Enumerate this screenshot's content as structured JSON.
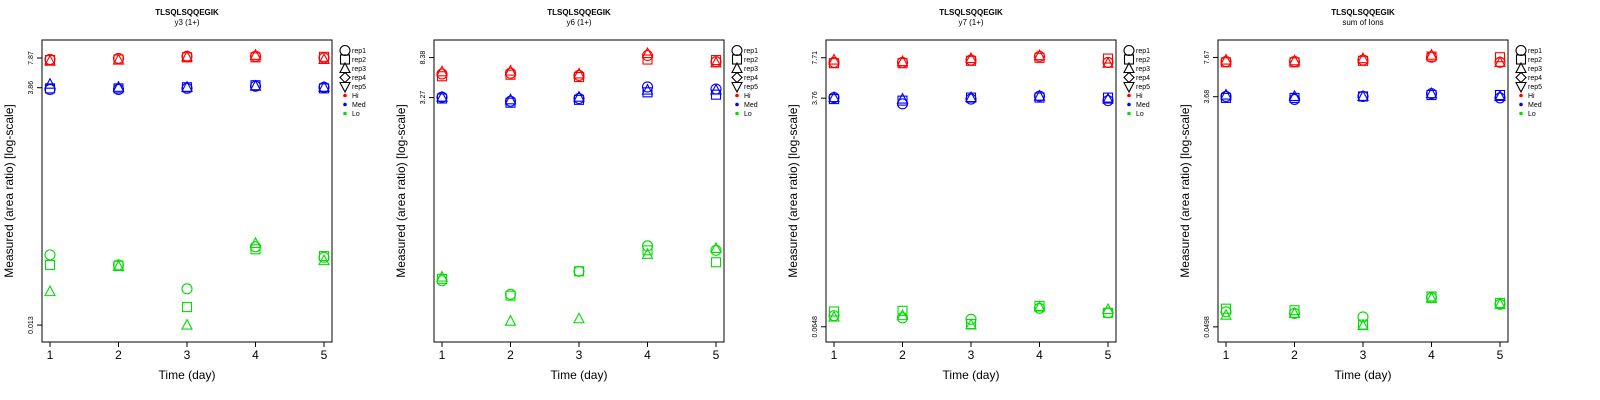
{
  "legend": {
    "items": [
      {
        "label": "rep1",
        "shape": "circle"
      },
      {
        "label": "rep2",
        "shape": "square"
      },
      {
        "label": "rep3",
        "shape": "triangle-up"
      },
      {
        "label": "rep4",
        "shape": "diamond"
      },
      {
        "label": "rep5",
        "shape": "triangle-down"
      },
      {
        "label": "Hi",
        "shape": "dot",
        "color": "#ff0000"
      },
      {
        "label": "Med",
        "shape": "dot",
        "color": "#0000ff"
      },
      {
        "label": "Lo",
        "shape": "dot",
        "color": "#00dd00"
      }
    ]
  },
  "colors": {
    "Hi": "#ff0000",
    "Med": "#0000ff",
    "Lo": "#00dd00"
  },
  "chart_data": [
    {
      "type": "scatter",
      "title": "TLSQLSQQEGIK",
      "subtitle": "y3 (1+)",
      "xlabel": "Time (day)",
      "ylabel": "Measured (area ratio) [log-scale]",
      "yscale": "log",
      "x_ticks": [
        1,
        2,
        3,
        4,
        5
      ],
      "y_ticks": [
        {
          "value": 0.013,
          "label": "0.013"
        },
        {
          "value": 3.86,
          "label": "3.86"
        },
        {
          "value": 7.87,
          "label": "7.87"
        }
      ],
      "ylim": [
        0.01,
        10.5
      ],
      "series": [
        {
          "group": "Hi",
          "rep": "rep1",
          "x": [
            1,
            2,
            3,
            4,
            5
          ],
          "y": [
            7.6,
            7.8,
            8.2,
            8.2,
            7.9
          ]
        },
        {
          "group": "Hi",
          "rep": "rep2",
          "x": [
            1,
            2,
            3,
            4,
            5
          ],
          "y": [
            7.5,
            7.6,
            8.0,
            8.0,
            8.1
          ]
        },
        {
          "group": "Hi",
          "rep": "rep3",
          "x": [
            1,
            2,
            3,
            4,
            5
          ],
          "y": [
            7.3,
            7.5,
            8.1,
            8.4,
            7.6
          ]
        },
        {
          "group": "Med",
          "rep": "rep1",
          "x": [
            1,
            2,
            3,
            4,
            5
          ],
          "y": [
            3.7,
            3.7,
            3.8,
            4.0,
            3.9
          ]
        },
        {
          "group": "Med",
          "rep": "rep2",
          "x": [
            1,
            2,
            3,
            4,
            5
          ],
          "y": [
            3.8,
            3.8,
            3.9,
            4.1,
            3.8
          ]
        },
        {
          "group": "Med",
          "rep": "rep3",
          "x": [
            1,
            2,
            3,
            4,
            5
          ],
          "y": [
            4.2,
            3.9,
            3.9,
            4.0,
            3.9
          ]
        },
        {
          "group": "Lo",
          "rep": "rep1",
          "x": [
            1,
            2,
            3,
            4,
            5
          ],
          "y": [
            0.07,
            0.055,
            0.031,
            0.085,
            0.066
          ]
        },
        {
          "group": "Lo",
          "rep": "rep2",
          "x": [
            1,
            2,
            3,
            4,
            5
          ],
          "y": [
            0.055,
            0.054,
            0.02,
            0.08,
            0.068
          ]
        },
        {
          "group": "Lo",
          "rep": "rep3",
          "x": [
            1,
            2,
            3,
            4,
            5
          ],
          "y": [
            0.029,
            0.053,
            0.013,
            0.092,
            0.061
          ]
        }
      ]
    },
    {
      "type": "scatter",
      "title": "TLSQLSQQEGIK",
      "subtitle": "y6 (1+)",
      "xlabel": "Time (day)",
      "ylabel": "Measured (area ratio) [log-scale]",
      "yscale": "log",
      "x_ticks": [
        1,
        2,
        3,
        4,
        5
      ],
      "y_ticks": [
        {
          "value": 3.27,
          "label": "3.27"
        },
        {
          "value": 8.38,
          "label": "8.38"
        }
      ],
      "ylim": [
        0.012,
        11
      ],
      "series": [
        {
          "group": "Hi",
          "rep": "rep1",
          "x": [
            1,
            2,
            3,
            4,
            5
          ],
          "y": [
            5.7,
            5.8,
            5.5,
            8.8,
            7.6
          ]
        },
        {
          "group": "Hi",
          "rep": "rep2",
          "x": [
            1,
            2,
            3,
            4,
            5
          ],
          "y": [
            5.4,
            5.6,
            5.3,
            8.0,
            7.9
          ]
        },
        {
          "group": "Hi",
          "rep": "rep3",
          "x": [
            1,
            2,
            3,
            4,
            5
          ],
          "y": [
            6.0,
            6.1,
            5.7,
            9.2,
            7.4
          ]
        },
        {
          "group": "Med",
          "rep": "rep1",
          "x": [
            1,
            2,
            3,
            4,
            5
          ],
          "y": [
            3.3,
            3.0,
            3.2,
            4.2,
            4.0
          ]
        },
        {
          "group": "Med",
          "rep": "rep2",
          "x": [
            1,
            2,
            3,
            4,
            5
          ],
          "y": [
            3.2,
            2.9,
            3.1,
            3.7,
            3.5
          ]
        },
        {
          "group": "Med",
          "rep": "rep3",
          "x": [
            1,
            2,
            3,
            4,
            5
          ],
          "y": [
            3.3,
            3.1,
            3.3,
            3.9,
            3.9
          ]
        },
        {
          "group": "Lo",
          "rep": "rep1",
          "x": [
            1,
            2,
            3,
            4,
            5
          ],
          "y": [
            0.044,
            0.032,
            0.055,
            0.1,
            0.09
          ]
        },
        {
          "group": "Lo",
          "rep": "rep2",
          "x": [
            1,
            2,
            3,
            4,
            5
          ],
          "y": [
            0.046,
            0.031,
            0.055,
            0.09,
            0.068
          ]
        },
        {
          "group": "Lo",
          "rep": "rep3",
          "x": [
            1,
            2,
            3,
            4,
            5
          ],
          "y": [
            0.048,
            0.017,
            0.018,
            0.082,
            0.094
          ]
        }
      ]
    },
    {
      "type": "scatter",
      "title": "TLSQLSQQEGIK",
      "subtitle": "y7 (1+)",
      "xlabel": "Time (day)",
      "ylabel": "Measured (area ratio) [log-scale]",
      "yscale": "log",
      "x_ticks": [
        1,
        2,
        3,
        4,
        5
      ],
      "y_ticks": [
        {
          "value": 0.0648,
          "label": "0.0648"
        },
        {
          "value": 3.76,
          "label": "3.76"
        },
        {
          "value": 7.71,
          "label": "7.71"
        }
      ],
      "ylim": [
        0.055,
        9.5
      ],
      "series": [
        {
          "group": "Hi",
          "rep": "rep1",
          "x": [
            1,
            2,
            3,
            4,
            5
          ],
          "y": [
            7.1,
            7.1,
            7.4,
            7.9,
            7.1
          ]
        },
        {
          "group": "Hi",
          "rep": "rep2",
          "x": [
            1,
            2,
            3,
            4,
            5
          ],
          "y": [
            7.0,
            7.0,
            7.3,
            7.7,
            7.6
          ]
        },
        {
          "group": "Hi",
          "rep": "rep3",
          "x": [
            1,
            2,
            3,
            4,
            5
          ],
          "y": [
            7.4,
            7.2,
            7.6,
            8.0,
            7.0
          ]
        },
        {
          "group": "Med",
          "rep": "rep1",
          "x": [
            1,
            2,
            3,
            4,
            5
          ],
          "y": [
            3.8,
            3.4,
            3.7,
            3.9,
            3.6
          ]
        },
        {
          "group": "Med",
          "rep": "rep2",
          "x": [
            1,
            2,
            3,
            4,
            5
          ],
          "y": [
            3.7,
            3.6,
            3.8,
            3.8,
            3.8
          ]
        },
        {
          "group": "Med",
          "rep": "rep3",
          "x": [
            1,
            2,
            3,
            4,
            5
          ],
          "y": [
            3.8,
            3.7,
            3.8,
            3.9,
            3.7
          ]
        },
        {
          "group": "Lo",
          "rep": "rep1",
          "x": [
            1,
            2,
            3,
            4,
            5
          ],
          "y": [
            0.079,
            0.076,
            0.074,
            0.09,
            0.083
          ]
        },
        {
          "group": "Lo",
          "rep": "rep2",
          "x": [
            1,
            2,
            3,
            4,
            5
          ],
          "y": [
            0.085,
            0.086,
            0.068,
            0.094,
            0.083
          ]
        },
        {
          "group": "Lo",
          "rep": "rep3",
          "x": [
            1,
            2,
            3,
            4,
            5
          ],
          "y": [
            0.077,
            0.079,
            0.067,
            0.092,
            0.088
          ]
        }
      ]
    },
    {
      "type": "scatter",
      "title": "TLSQLSQQEGIK",
      "subtitle": "sum of Ions",
      "xlabel": "Time (day)",
      "ylabel": "Measured (area ratio) [log-scale]",
      "yscale": "log",
      "x_ticks": [
        1,
        2,
        3,
        4,
        5
      ],
      "y_ticks": [
        {
          "value": 0.0498,
          "label": "0.0498"
        },
        {
          "value": 3.68,
          "label": "3.68"
        },
        {
          "value": 7.67,
          "label": "7.67"
        }
      ],
      "ylim": [
        0.042,
        9.5
      ],
      "series": [
        {
          "group": "Hi",
          "rep": "rep1",
          "x": [
            1,
            2,
            3,
            4,
            5
          ],
          "y": [
            7.1,
            7.1,
            7.3,
            7.7,
            7.0
          ]
        },
        {
          "group": "Hi",
          "rep": "rep2",
          "x": [
            1,
            2,
            3,
            4,
            5
          ],
          "y": [
            7.0,
            7.0,
            7.2,
            7.8,
            7.7
          ]
        },
        {
          "group": "Hi",
          "rep": "rep3",
          "x": [
            1,
            2,
            3,
            4,
            5
          ],
          "y": [
            7.3,
            7.2,
            7.5,
            8.0,
            7.0
          ]
        },
        {
          "group": "Med",
          "rep": "rep1",
          "x": [
            1,
            2,
            3,
            4,
            5
          ],
          "y": [
            3.7,
            3.5,
            3.7,
            3.9,
            3.6
          ]
        },
        {
          "group": "Med",
          "rep": "rep2",
          "x": [
            1,
            2,
            3,
            4,
            5
          ],
          "y": [
            3.6,
            3.6,
            3.7,
            3.8,
            3.8
          ]
        },
        {
          "group": "Med",
          "rep": "rep3",
          "x": [
            1,
            2,
            3,
            4,
            5
          ],
          "y": [
            3.8,
            3.7,
            3.7,
            3.9,
            3.7
          ]
        },
        {
          "group": "Lo",
          "rep": "rep1",
          "x": [
            1,
            2,
            3,
            4,
            5
          ],
          "y": [
            0.066,
            0.064,
            0.06,
            0.086,
            0.076
          ]
        },
        {
          "group": "Lo",
          "rep": "rep2",
          "x": [
            1,
            2,
            3,
            4,
            5
          ],
          "y": [
            0.07,
            0.068,
            0.052,
            0.088,
            0.078
          ]
        },
        {
          "group": "Lo",
          "rep": "rep3",
          "x": [
            1,
            2,
            3,
            4,
            5
          ],
          "y": [
            0.062,
            0.064,
            0.051,
            0.085,
            0.076
          ]
        }
      ]
    }
  ]
}
